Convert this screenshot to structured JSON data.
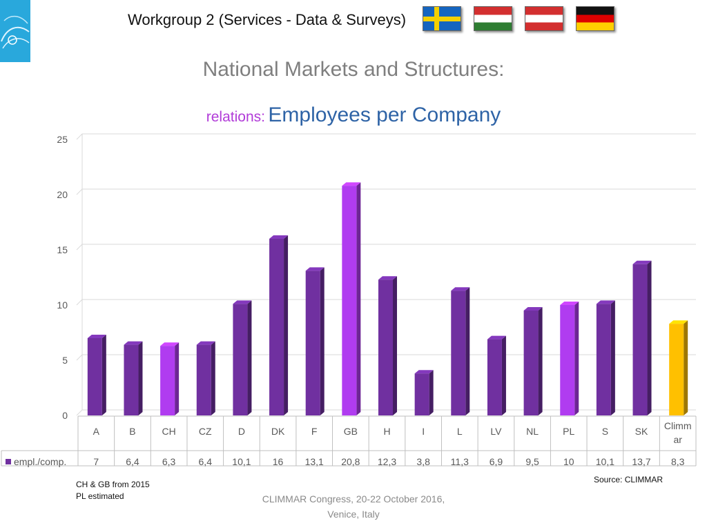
{
  "header": {
    "title": "Workgroup 2 (Services - Data & Surveys)"
  },
  "flags": [
    {
      "country": "Sweden",
      "icon": "sweden-flag-icon"
    },
    {
      "country": "Hungary",
      "icon": "hungary-flag-icon"
    },
    {
      "country": "Austria",
      "icon": "austria-flag-icon"
    },
    {
      "country": "Germany",
      "icon": "germany-flag-icon"
    }
  ],
  "title": "National Markets and Structures:",
  "subtitle": {
    "prefix": "relations:",
    "main": "Employees per Company"
  },
  "chart_data": {
    "type": "bar",
    "categories": [
      "A",
      "B",
      "CH",
      "CZ",
      "D",
      "DK",
      "F",
      "GB",
      "H",
      "I",
      "L",
      "LV",
      "NL",
      "PL",
      "S",
      "SK",
      "Climm\nar"
    ],
    "series": [
      {
        "name": "empl./comp.",
        "values": [
          7,
          6.4,
          6.3,
          6.4,
          10.1,
          16,
          13.1,
          20.8,
          12.3,
          3.8,
          11.3,
          6.9,
          9.5,
          10,
          10.1,
          13.7,
          8.3
        ]
      }
    ],
    "value_labels": [
      "7",
      "6,4",
      "6,3",
      "6,4",
      "10,1",
      "16",
      "13,1",
      "20,8",
      "12,3",
      "3,8",
      "11,3",
      "6,9",
      "9,5",
      "10",
      "10,1",
      "13,7",
      "8,3"
    ],
    "bar_colors": [
      "#7030a0",
      "#7030a0",
      "#b03cf0",
      "#7030a0",
      "#7030a0",
      "#7030a0",
      "#7030a0",
      "#b03cf0",
      "#7030a0",
      "#7030a0",
      "#7030a0",
      "#7030a0",
      "#7030a0",
      "#b03cf0",
      "#7030a0",
      "#7030a0",
      "#ffc000"
    ],
    "ylim": [
      0,
      25
    ],
    "yticks": [
      0,
      5,
      10,
      15,
      20,
      25
    ],
    "grid": true,
    "legend": "data-table"
  },
  "notes": [
    "CH & GB from 2015",
    "PL estimated"
  ],
  "source": "Source: CLIMMAR",
  "footer": [
    "CLIMMAR Congress, 20-22 October 2016,",
    "Venice, Italy"
  ],
  "colors": {
    "series": "#7030a0",
    "highlight": "#b03cf0",
    "average": "#ffc000",
    "subtitle_prefix": "#b13bd8",
    "subtitle_main": "#2e63a6"
  }
}
